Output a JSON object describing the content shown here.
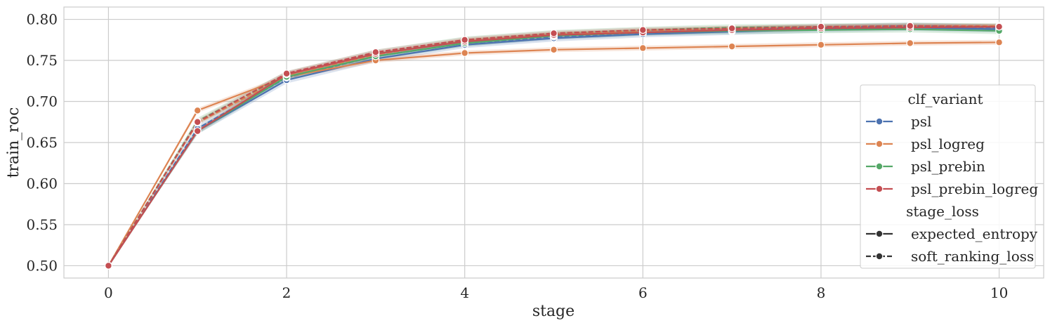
{
  "chart_data": {
    "type": "line",
    "xlabel": "stage",
    "ylabel": "train_roc",
    "xlim": [
      -0.5,
      10.5
    ],
    "ylim": [
      0.485,
      0.815
    ],
    "x_ticks": [
      0,
      2,
      4,
      6,
      8,
      10
    ],
    "y_ticks": [
      0.5,
      0.55,
      0.6,
      0.65,
      0.7,
      0.75,
      0.8
    ],
    "x_tick_labels": [
      "0",
      "2",
      "4",
      "6",
      "8",
      "10"
    ],
    "y_tick_labels": [
      "0.50",
      "0.55",
      "0.60",
      "0.65",
      "0.70",
      "0.75",
      "0.80"
    ],
    "grid": true,
    "legend_position": "right",
    "x": [
      0,
      1,
      2,
      3,
      4,
      5,
      6,
      7,
      8,
      9,
      10
    ],
    "legend": {
      "hue_title": "clf_variant",
      "style_title": "stage_loss",
      "hue_entries": [
        {
          "label": "psl",
          "color": "#4c72b0"
        },
        {
          "label": "psl_logreg",
          "color": "#dd8452"
        },
        {
          "label": "psl_prebin",
          "color": "#55a868"
        },
        {
          "label": "psl_prebin_logreg",
          "color": "#c44e52"
        }
      ],
      "style_entries": [
        {
          "label": "expected_entropy",
          "dash": "solid"
        },
        {
          "label": "soft_ranking_loss",
          "dash": "dashed"
        }
      ]
    },
    "series": [
      {
        "variant": "psl",
        "stage_loss": "expected_entropy",
        "color": "#4c72b0",
        "dash": "solid",
        "values": [
          0.5,
          0.664,
          0.726,
          0.752,
          0.769,
          0.777,
          0.782,
          0.785,
          0.788,
          0.79,
          0.788
        ],
        "band": 0.004
      },
      {
        "variant": "psl",
        "stage_loss": "soft_ranking_loss",
        "color": "#4c72b0",
        "dash": "dashed",
        "values": [
          0.5,
          0.667,
          0.729,
          0.755,
          0.771,
          0.779,
          0.784,
          0.787,
          0.79,
          0.792,
          0.79
        ],
        "band": 0.004
      },
      {
        "variant": "psl_logreg",
        "stage_loss": "expected_entropy",
        "color": "#dd8452",
        "dash": "solid",
        "values": [
          0.5,
          0.689,
          0.73,
          0.75,
          0.759,
          0.763,
          0.765,
          0.767,
          0.769,
          0.771,
          0.772
        ],
        "band": 0.003
      },
      {
        "variant": "psl_logreg",
        "stage_loss": "soft_ranking_loss",
        "color": "#dd8452",
        "dash": "dashed",
        "values": [
          0.5,
          0.674,
          0.731,
          0.757,
          0.774,
          0.782,
          0.786,
          0.789,
          0.791,
          0.792,
          0.792
        ],
        "band": 0.003
      },
      {
        "variant": "psl_prebin",
        "stage_loss": "expected_entropy",
        "color": "#55a868",
        "dash": "solid",
        "values": [
          0.5,
          0.664,
          0.73,
          0.755,
          0.771,
          0.78,
          0.784,
          0.786,
          0.787,
          0.788,
          0.786
        ],
        "band": 0.004
      },
      {
        "variant": "psl_prebin",
        "stage_loss": "soft_ranking_loss",
        "color": "#55a868",
        "dash": "dashed",
        "values": [
          0.5,
          0.676,
          0.733,
          0.759,
          0.775,
          0.783,
          0.787,
          0.79,
          0.791,
          0.792,
          0.791
        ],
        "band": 0.004
      },
      {
        "variant": "psl_prebin_logreg",
        "stage_loss": "expected_entropy",
        "color": "#c44e52",
        "dash": "solid",
        "values": [
          0.5,
          0.664,
          0.733,
          0.758,
          0.773,
          0.781,
          0.784,
          0.787,
          0.789,
          0.79,
          0.791
        ],
        "band": 0.003
      },
      {
        "variant": "psl_prebin_logreg",
        "stage_loss": "soft_ranking_loss",
        "color": "#c44e52",
        "dash": "dashed",
        "values": [
          0.5,
          0.675,
          0.734,
          0.76,
          0.775,
          0.783,
          0.787,
          0.789,
          0.791,
          0.792,
          0.791
        ],
        "band": 0.003
      }
    ]
  }
}
